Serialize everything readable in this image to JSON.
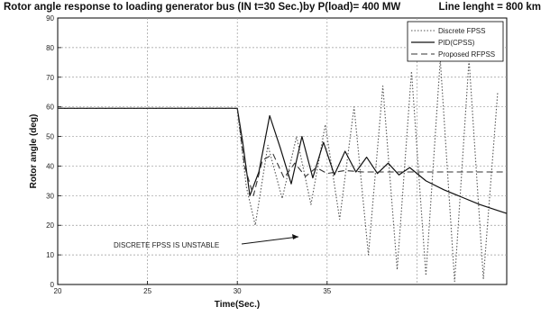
{
  "header": {
    "title": "Rotor angle response to loading generator bus (IN t=30 Sec.)by P(load)= 400 MW",
    "line_info": "Line lenght = 800 km"
  },
  "chart_data": {
    "type": "line",
    "title": "Rotor angle response to loading generator bus (IN t=30 Sec.)by P(load)= 400 MW",
    "xlabel": "Time(Sec.)",
    "ylabel": "Rotor angle (deg)",
    "xlim": [
      20,
      45
    ],
    "ylim": [
      0,
      90
    ],
    "xticks": [
      20,
      25,
      30,
      35
    ],
    "yticks": [
      0,
      10,
      20,
      30,
      40,
      50,
      60,
      70,
      80,
      90
    ],
    "grid": true,
    "legend_position": "top-right",
    "annotation": "DISCRETE FPSS IS UNSTABLE",
    "series": [
      {
        "name": "Discrete FPSS",
        "style": "dotted",
        "x": [
          20,
          30,
          30.5,
          31.0,
          31.7,
          32.5,
          33.3,
          34.1,
          34.9,
          35.7,
          36.5,
          37.3,
          38.1,
          38.9,
          39.7,
          40.5,
          41.3,
          42.1,
          42.9,
          43.7,
          44.5
        ],
        "y": [
          59.5,
          59.5,
          33,
          20,
          47,
          29,
          50,
          27,
          54,
          22,
          60,
          10,
          67,
          5,
          72,
          3,
          76,
          1,
          76,
          2,
          65
        ]
      },
      {
        "name": "PID(CPSS)",
        "style": "solid",
        "x": [
          20,
          30,
          30.3,
          30.7,
          31.2,
          31.8,
          32.4,
          33.0,
          33.6,
          34.2,
          34.8,
          35.4,
          36.0,
          36.6,
          37.2,
          37.8,
          38.4,
          39.0,
          39.6,
          40.5,
          41.5,
          42.5,
          43.5,
          44.5,
          45.0
        ],
        "y": [
          59.5,
          59.5,
          48,
          30,
          38,
          57,
          46,
          34,
          50,
          36,
          48,
          37,
          45,
          38,
          43,
          37.5,
          41,
          37,
          39.5,
          35,
          32,
          29.5,
          27,
          25,
          24
        ]
      },
      {
        "name": "Proposed RFPSS",
        "style": "dashed",
        "x": [
          20,
          30,
          30.4,
          30.9,
          31.4,
          32.0,
          32.6,
          33.2,
          33.8,
          34.4,
          35.0,
          36.0,
          37.0,
          45.0
        ],
        "y": [
          59.5,
          59.5,
          40,
          30,
          42,
          44,
          36,
          41,
          36.5,
          39.5,
          37.5,
          38.5,
          38,
          38
        ]
      }
    ]
  }
}
